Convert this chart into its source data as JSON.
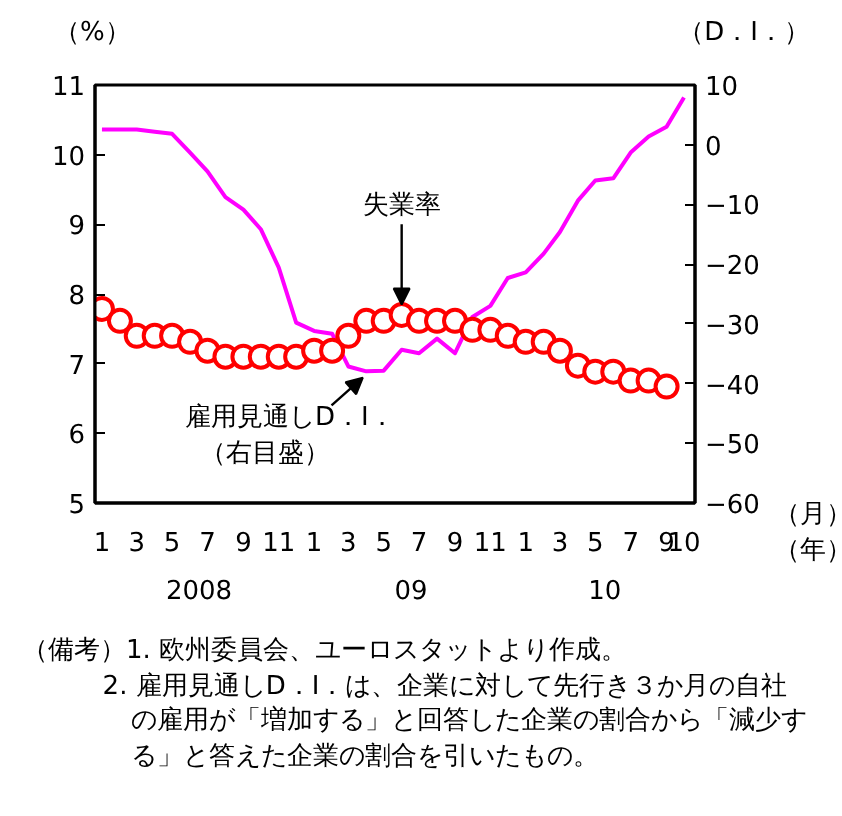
{
  "chart_data": {
    "type": "line",
    "ylabel": "（%）",
    "y2label": "（D．I．）",
    "x": [
      "2008-01",
      "2008-02",
      "2008-03",
      "2008-04",
      "2008-05",
      "2008-06",
      "2008-07",
      "2008-08",
      "2008-09",
      "2008-10",
      "2008-11",
      "2008-12",
      "2009-01",
      "2009-02",
      "2009-03",
      "2009-04",
      "2009-05",
      "2009-06",
      "2009-07",
      "2009-08",
      "2009-09",
      "2009-10",
      "2009-11",
      "2009-12",
      "2010-01",
      "2010-02",
      "2010-03",
      "2010-04",
      "2010-05",
      "2010-06",
      "2010-07",
      "2010-08",
      "2010-09",
      "2010-10"
    ],
    "series": [
      {
        "color": "#ff00ff",
        "axis": "y",
        "values": [
          10.36,
          10.36,
          10.36,
          10.33,
          10.3,
          10.03,
          9.76,
          9.39,
          9.21,
          8.93,
          8.38,
          7.59,
          7.47,
          7.43,
          6.96,
          6.89,
          6.9,
          7.2,
          7.15,
          7.36,
          7.15,
          7.67,
          7.83,
          8.23,
          8.31,
          8.58,
          8.89,
          9.34,
          9.63,
          9.66,
          10.03,
          10.26,
          10.4,
          10.82
        ]
      },
      {
        "type": "scatter",
        "color": "#ff0000",
        "axis": "y2",
        "marker": "circle",
        "values": [
          -27.5,
          -29.5,
          -32,
          -32,
          -32,
          -33,
          -34.5,
          -35.5,
          -35.5,
          -35.5,
          -35.5,
          -35.5,
          -34.5,
          -34.5,
          -32,
          -29.5,
          -29.5,
          -28.5,
          -29.5,
          -29.5,
          -29.5,
          -31,
          -31,
          -32,
          -33,
          -33,
          -34.5,
          -37,
          -38,
          -38,
          -39.5,
          -39.5,
          -40.5,
          null
        ]
      }
    ],
    "xlim": [
      "2007-12-20",
      "2010-10-20"
    ],
    "xticks": [
      {
        "value": "2008-01",
        "label": "1"
      },
      {
        "value": "2008-03",
        "label": "3"
      },
      {
        "value": "2008-05",
        "label": "5"
      },
      {
        "value": "2008-07",
        "label": "7"
      },
      {
        "value": "2008-09",
        "label": "9"
      },
      {
        "value": "2008-11",
        "label": "11"
      },
      {
        "value": "2009-01",
        "label": "1"
      },
      {
        "value": "2009-03",
        "label": "3"
      },
      {
        "value": "2009-05",
        "label": "5"
      },
      {
        "value": "2009-07",
        "label": "7"
      },
      {
        "value": "2009-09",
        "label": "9"
      },
      {
        "value": "2009-11",
        "label": "11"
      },
      {
        "value": "2010-01",
        "label": "1"
      },
      {
        "value": "2010-03",
        "label": "3"
      },
      {
        "value": "2010-05",
        "label": "5"
      },
      {
        "value": "2010-07",
        "label": "7"
      },
      {
        "value": "2010-09",
        "label": "9"
      },
      {
        "value": "2010-10",
        "label": "10"
      }
    ],
    "ylim": [
      5,
      11
    ],
    "yticks": [
      5,
      6,
      7,
      8,
      9,
      10,
      11
    ],
    "y2lim": [
      -60,
      10
    ],
    "y2ticks": [
      -60,
      -50,
      -40,
      -30,
      -20,
      -10,
      0,
      10
    ],
    "grid": false,
    "annotations": [
      "2008",
      "09",
      "10",
      "（月）",
      "（年）",
      {
        "text": "失業率",
        "x": "2009-06",
        "y": 7.8
      },
      {
        "text": "雇用見通しD．I．",
        "x": "2009-04",
        "y": 6.9
      },
      "（右目盛）",
      "（備考）1. 欧州委員会、ユーロスタットより作成。",
      "2. 雇用見通しD．I．は、企業に対して先行き３か月の自社の雇用が「増加する」と回答した企業の割合から「減少する」と答えた企業の割合を引いたもの。"
    ]
  }
}
